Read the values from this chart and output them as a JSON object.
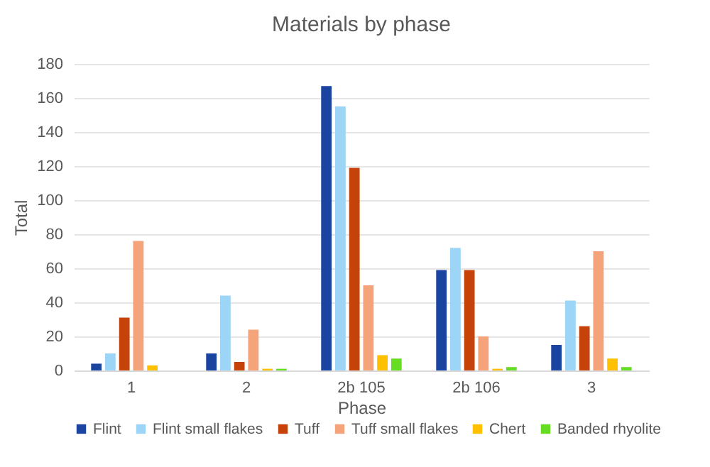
{
  "chart_data": {
    "type": "bar",
    "title": "Materials by phase",
    "xlabel": "Phase",
    "ylabel": "Total",
    "categories": [
      "1",
      "2",
      "2b 105",
      "2b 106",
      "3"
    ],
    "series": [
      {
        "name": "Flint",
        "color": "#1a44a0",
        "values": [
          4,
          10,
          167,
          59,
          15
        ]
      },
      {
        "name": "Flint small flakes",
        "color": "#9dd5f7",
        "values": [
          10,
          44,
          155,
          72,
          41
        ]
      },
      {
        "name": "Tuff",
        "color": "#c5420b",
        "values": [
          31,
          5,
          119,
          59,
          26
        ]
      },
      {
        "name": "Tuff small flakes",
        "color": "#f4a37a",
        "values": [
          76,
          24,
          50,
          20,
          70
        ]
      },
      {
        "name": "Chert",
        "color": "#ffc000",
        "values": [
          3,
          1,
          9,
          1,
          7
        ]
      },
      {
        "name": "Banded rhyolite",
        "color": "#66dd22",
        "values": [
          0,
          1,
          7,
          2,
          2
        ]
      }
    ],
    "ylim": [
      0,
      180
    ],
    "yticks": [
      0,
      20,
      40,
      60,
      80,
      100,
      120,
      140,
      160,
      180
    ],
    "grid": "y",
    "legend": "bottom"
  }
}
